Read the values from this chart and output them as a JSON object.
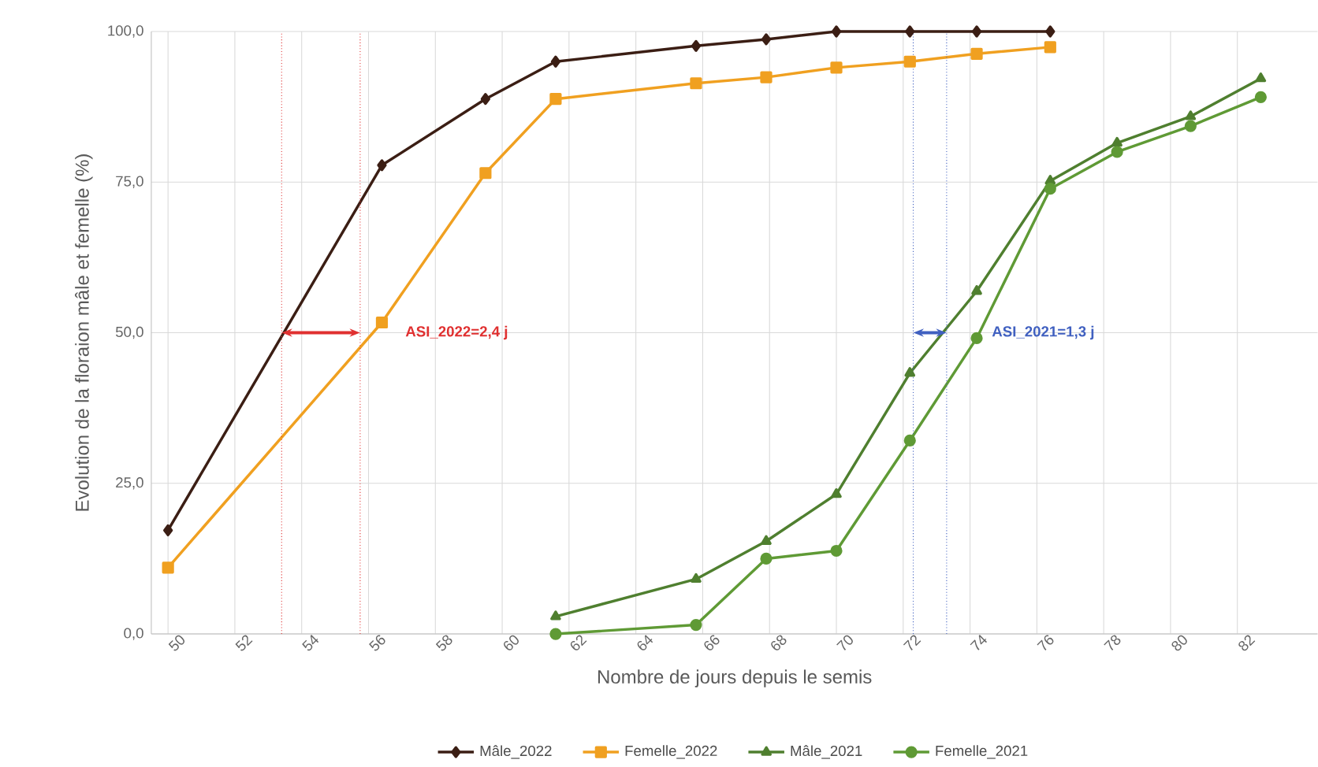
{
  "chart_data": {
    "type": "line",
    "xlabel": "Nombre de jours depuis le semis",
    "ylabel": "Evolution de la floraion mâle et femelle (%)",
    "xlim": [
      49.5,
      84.4
    ],
    "ylim": [
      0,
      100
    ],
    "xticks": [
      50,
      52,
      54,
      56,
      58,
      60,
      62,
      64,
      66,
      68,
      70,
      72,
      74,
      76,
      78,
      80,
      82
    ],
    "yticks": [
      {
        "value": 0,
        "label": "0,0"
      },
      {
        "value": 25,
        "label": "25,0"
      },
      {
        "value": 50,
        "label": "50,0"
      },
      {
        "value": 75,
        "label": "75,0"
      },
      {
        "value": 100,
        "label": "100,0"
      }
    ],
    "grid": true,
    "legend": "bottom",
    "series": [
      {
        "name": "Mâle_2022",
        "color": "#3b1e14",
        "marker": "diamond",
        "x": [
          50,
          56.4,
          59.5,
          61.6,
          65.8,
          67.9,
          70.0,
          72.2,
          74.2,
          76.4
        ],
        "values": [
          17.2,
          77.8,
          88.8,
          95.0,
          97.6,
          98.7,
          100,
          100,
          100,
          100
        ]
      },
      {
        "name": "Femelle_2022",
        "color": "#f0a020",
        "marker": "square",
        "x": [
          50,
          56.4,
          59.5,
          61.6,
          65.8,
          67.9,
          70.0,
          72.2,
          74.2,
          76.4
        ],
        "values": [
          11.0,
          51.7,
          76.5,
          88.8,
          91.4,
          92.4,
          94.0,
          95.0,
          96.3,
          97.4
        ]
      },
      {
        "name": "Mâle_2021",
        "color": "#4f7f2f",
        "marker": "triangle",
        "x": [
          61.6,
          65.8,
          67.9,
          70.0,
          72.2,
          74.2,
          76.4,
          78.4,
          80.6,
          82.7
        ],
        "values": [
          2.9,
          9.1,
          15.4,
          23.2,
          43.3,
          56.9,
          75.2,
          81.5,
          85.9,
          92.2
        ]
      },
      {
        "name": "Femelle_2021",
        "color": "#5f9a35",
        "marker": "circle",
        "x": [
          61.6,
          65.8,
          67.9,
          70.0,
          72.2,
          74.2,
          76.4,
          78.4,
          80.6,
          82.7
        ],
        "values": [
          0,
          1.5,
          12.5,
          13.8,
          32.1,
          49.1,
          73.9,
          80.0,
          84.3,
          89.1
        ]
      }
    ],
    "ref_lines": [
      {
        "axis": "x",
        "value": 53.4,
        "color": "#e03030",
        "line_style": "dotted"
      },
      {
        "axis": "x",
        "value": 55.75,
        "color": "#e03030",
        "line_style": "dotted"
      },
      {
        "axis": "x",
        "value": 72.3,
        "color": "#4060c0",
        "line_style": "dotted"
      },
      {
        "axis": "x",
        "value": 73.3,
        "color": "#4060c0",
        "line_style": "dotted"
      }
    ],
    "annotations": [
      "ASI_2022=2,4 j",
      "ASI_2021=1,3 j"
    ]
  }
}
